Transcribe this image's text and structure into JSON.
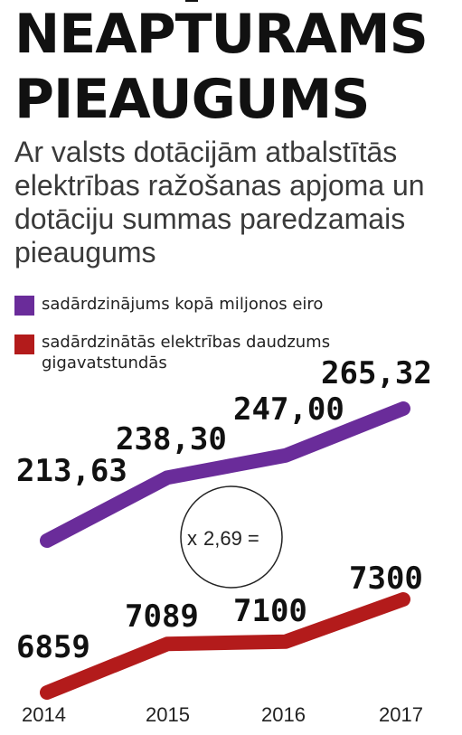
{
  "title_lines": [
    "NEAPTURAMS",
    "PIEAUGUMS"
  ],
  "subtitle": "Ar valsts dotācijām atbalstītās elektrības ražošanas apjoma un dotāciju summas paredzamais pieaugums",
  "legend": [
    {
      "label": "sadārdzinājums kopā miljonos eiro",
      "color": "#6a2c9a"
    },
    {
      "label": "sadārdzinātās elektrības daudzums gigavatstundās",
      "color": "#b31b1b"
    }
  ],
  "ratio_prefix": "x",
  "ratio_value": "2,69 =",
  "chart_data": {
    "type": "line",
    "categories": [
      "2014",
      "2015",
      "2016",
      "2017"
    ],
    "series": [
      {
        "name": "sadārdzinājums kopā miljonos eiro",
        "values": [
          213.63,
          238.3,
          247.0,
          265.32
        ],
        "labels": [
          "213,63",
          "238,30",
          "247,00",
          "265,32"
        ],
        "color": "#6a2c9a"
      },
      {
        "name": "sadārdzinātās elektrības daudzums gigavatstundās",
        "values": [
          6859,
          7089,
          7100,
          7300
        ],
        "labels": [
          "6859",
          "7089",
          "7100",
          "7300"
        ],
        "color": "#b31b1b"
      }
    ],
    "grid": false,
    "legend_position": "top-left"
  }
}
